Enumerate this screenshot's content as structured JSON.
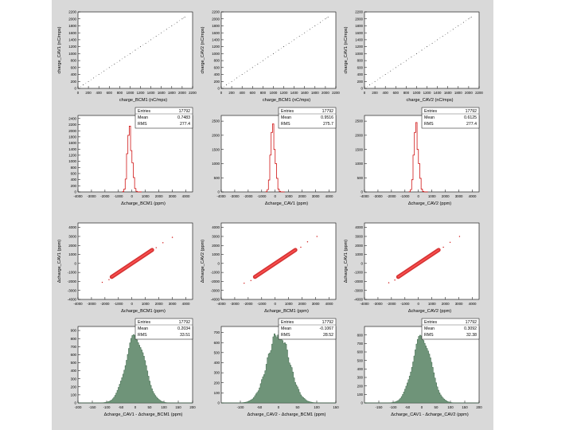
{
  "colors": {
    "background": "#d9d9d9",
    "frame": "#ffffff",
    "hist_fill": "#6f9479",
    "red": "#d01414",
    "ink": "#000000"
  },
  "stat_labels": {
    "entries": "Entries",
    "mean": "Mean",
    "rms": "RMS"
  },
  "chart_data": [
    {
      "type": "scatter",
      "xlabel": "charge_BCM1 (nC/mps)",
      "ylabel": "charge_CAV1 (nC/mps)",
      "xlim": [
        0,
        2200
      ],
      "ylim": [
        0,
        2200
      ],
      "xticks": [
        0,
        200,
        400,
        600,
        800,
        1000,
        1200,
        1400,
        1600,
        1800,
        2000,
        2200
      ],
      "xtick_labels": [
        "0",
        "200",
        "400",
        "600",
        "800",
        "1000",
        "1200",
        "1400",
        "1600",
        "1800",
        "2000",
        "2200"
      ],
      "yticks": [
        0,
        200,
        400,
        600,
        800,
        1000,
        1200,
        1400,
        1600,
        1800,
        2000,
        2200
      ],
      "ytick_labels": [
        "0",
        "200",
        "400",
        "600",
        "800",
        "1000",
        "1200",
        "1400",
        "1600",
        "1800",
        "2000",
        "2200"
      ],
      "series": [
        {
          "name": "correlation",
          "x": [
            0,
            100,
            200,
            300,
            400,
            500,
            600,
            700,
            800,
            900,
            1000,
            1100,
            1200,
            1300,
            1400,
            1500,
            1600,
            1700,
            1800,
            1900,
            2000,
            2050
          ],
          "y": [
            0,
            100,
            200,
            300,
            400,
            500,
            600,
            700,
            800,
            900,
            1000,
            1100,
            1200,
            1300,
            1400,
            1500,
            1600,
            1700,
            1800,
            1900,
            2000,
            2050
          ]
        }
      ]
    },
    {
      "type": "scatter",
      "xlabel": "charge_BCM1 (nC/mps)",
      "ylabel": "charge_CAV2 (nC/mps)",
      "xlim": [
        0,
        2200
      ],
      "ylim": [
        0,
        2200
      ],
      "xticks": [
        0,
        200,
        400,
        600,
        800,
        1000,
        1200,
        1400,
        1600,
        1800,
        2000,
        2200
      ],
      "xtick_labels": [
        "0",
        "200",
        "400",
        "600",
        "800",
        "1000",
        "1200",
        "1400",
        "1600",
        "1800",
        "2000",
        "2200"
      ],
      "yticks": [
        0,
        200,
        400,
        600,
        800,
        1000,
        1200,
        1400,
        1600,
        1800,
        2000,
        2200
      ],
      "ytick_labels": [
        "0",
        "200",
        "400",
        "600",
        "800",
        "1000",
        "1200",
        "1400",
        "1600",
        "1800",
        "2000",
        "2200"
      ],
      "series": [
        {
          "name": "correlation",
          "x": [
            0,
            100,
            200,
            300,
            400,
            500,
            600,
            700,
            800,
            900,
            1000,
            1100,
            1200,
            1300,
            1400,
            1500,
            1600,
            1700,
            1800,
            1900,
            2000,
            2050
          ],
          "y": [
            0,
            100,
            200,
            300,
            400,
            500,
            600,
            700,
            800,
            900,
            1000,
            1100,
            1200,
            1300,
            1400,
            1500,
            1600,
            1700,
            1800,
            1900,
            2000,
            2050
          ]
        }
      ]
    },
    {
      "type": "scatter",
      "xlabel": "charge_CAV2 (nC/mps)",
      "ylabel": "charge_CAV1 (nC/mps)",
      "xlim": [
        0,
        2200
      ],
      "ylim": [
        0,
        2200
      ],
      "xticks": [
        0,
        200,
        400,
        600,
        800,
        1000,
        1200,
        1400,
        1600,
        1800,
        2000,
        2200
      ],
      "xtick_labels": [
        "0",
        "200",
        "400",
        "600",
        "800",
        "1000",
        "1200",
        "1400",
        "1600",
        "1800",
        "2000",
        "2200"
      ],
      "yticks": [
        0,
        200,
        400,
        600,
        800,
        1000,
        1200,
        1400,
        1600,
        1800,
        2000,
        2200
      ],
      "ytick_labels": [
        "0",
        "200",
        "400",
        "600",
        "800",
        "1000",
        "1200",
        "1400",
        "1600",
        "1800",
        "2000",
        "2200"
      ],
      "series": [
        {
          "name": "correlation",
          "x": [
            0,
            100,
            200,
            300,
            400,
            500,
            600,
            700,
            800,
            900,
            1000,
            1100,
            1200,
            1300,
            1400,
            1500,
            1600,
            1700,
            1800,
            1900,
            2000,
            2050
          ],
          "y": [
            0,
            100,
            200,
            300,
            400,
            500,
            600,
            700,
            800,
            900,
            1000,
            1100,
            1200,
            1300,
            1400,
            1500,
            1600,
            1700,
            1800,
            1900,
            2000,
            2050
          ]
        }
      ]
    },
    {
      "type": "histogram",
      "style": "line",
      "xlabel": "Δcharge_BCM1 (ppm)",
      "xlim": [
        -4000,
        4500
      ],
      "ylim": [
        0,
        2500
      ],
      "xticks": [
        -4000,
        -3000,
        -2000,
        -1000,
        0,
        1000,
        2000,
        3000,
        4000
      ],
      "xtick_labels": [
        "-4000",
        "-3000",
        "-2000",
        "-1000",
        "0",
        "1000",
        "2000",
        "3000",
        "4000"
      ],
      "yticks": [
        0,
        200,
        400,
        600,
        800,
        1000,
        1200,
        1400,
        1600,
        1800,
        2000,
        2200,
        2400
      ],
      "ytick_labels": [
        "0",
        "200",
        "400",
        "600",
        "800",
        "1000",
        "1200",
        "1400",
        "1600",
        "1800",
        "2000",
        "2200",
        "2400"
      ],
      "stats": {
        "entries": "17792",
        "mean": "0.7483",
        "rms": "277.4"
      },
      "bins": {
        "start": -700,
        "width": 100,
        "values": [
          8,
          90,
          420,
          1250,
          1850,
          2150,
          1350,
          950,
          470,
          110,
          20,
          4,
          2,
          1
        ]
      }
    },
    {
      "type": "histogram",
      "style": "line",
      "xlabel": "Δcharge_CAV1 (ppm)",
      "xlim": [
        -4000,
        4500
      ],
      "ylim": [
        0,
        2700
      ],
      "xticks": [
        -4000,
        -3000,
        -2000,
        -1000,
        0,
        1000,
        2000,
        3000,
        4000
      ],
      "xtick_labels": [
        "-4000",
        "-3000",
        "-2000",
        "-1000",
        "0",
        "1000",
        "2000",
        "3000",
        "4000"
      ],
      "yticks": [
        0,
        500,
        1000,
        1500,
        2000,
        2500
      ],
      "ytick_labels": [
        "0",
        "500",
        "1000",
        "1500",
        "2000",
        "2500"
      ],
      "stats": {
        "entries": "17792",
        "mean": "0.9516",
        "rms": "275.7"
      },
      "bins": {
        "start": -700,
        "width": 100,
        "values": [
          6,
          80,
          420,
          1300,
          2100,
          2400,
          1500,
          1000,
          480,
          100,
          20,
          4,
          2,
          1
        ]
      }
    },
    {
      "type": "histogram",
      "style": "line",
      "xlabel": "Δcharge_CAV2 (ppm)",
      "xlim": [
        -4000,
        4500
      ],
      "ylim": [
        0,
        2700
      ],
      "xticks": [
        -4000,
        -3000,
        -2000,
        -1000,
        0,
        1000,
        2000,
        3000,
        4000
      ],
      "xtick_labels": [
        "-4000",
        "-3000",
        "-2000",
        "-1000",
        "0",
        "1000",
        "2000",
        "3000",
        "4000"
      ],
      "yticks": [
        0,
        500,
        1000,
        1500,
        2000,
        2500
      ],
      "ytick_labels": [
        "0",
        "500",
        "1000",
        "1500",
        "2000",
        "2500"
      ],
      "stats": {
        "entries": "17792",
        "mean": "0.6125",
        "rms": "277.4"
      },
      "bins": {
        "start": -700,
        "width": 100,
        "values": [
          6,
          80,
          430,
          1300,
          2100,
          2450,
          1500,
          1000,
          480,
          100,
          20,
          4,
          2,
          1
        ]
      }
    },
    {
      "type": "scatter",
      "style": "band",
      "xlabel": "Δcharge_BCM1 (ppm)",
      "ylabel": "Δcharge_CAV1 (ppm)",
      "xlim": [
        -4000,
        4500
      ],
      "ylim": [
        -4000,
        4500
      ],
      "xticks": [
        -4000,
        -3000,
        -2000,
        -1000,
        0,
        1000,
        2000,
        3000,
        4000
      ],
      "xtick_labels": [
        "-4000",
        "-3000",
        "-2000",
        "-1000",
        "0",
        "1000",
        "2000",
        "3000",
        "4000"
      ],
      "yticks": [
        -4000,
        -3000,
        -2000,
        -1000,
        0,
        1000,
        2000,
        3000,
        4000
      ],
      "ytick_labels": [
        "-4000",
        "-3000",
        "-2000",
        "-1000",
        "0",
        "1000",
        "2000",
        "3000",
        "4000"
      ],
      "series": [
        {
          "name": "core",
          "x": [
            -1500,
            1500
          ],
          "y": [
            -1500,
            1500
          ]
        },
        {
          "name": "outliers",
          "x": [
            -2200,
            -1700,
            1800,
            2300,
            3000
          ],
          "y": [
            -2100,
            -1800,
            1750,
            2300,
            2900
          ]
        }
      ]
    },
    {
      "type": "scatter",
      "style": "band",
      "xlabel": "Δcharge_BCM1 (ppm)",
      "ylabel": "Δcharge_CAV2 (ppm)",
      "xlim": [
        -4000,
        4500
      ],
      "ylim": [
        -4000,
        4500
      ],
      "xticks": [
        -4000,
        -3000,
        -2000,
        -1000,
        0,
        1000,
        2000,
        3000,
        4000
      ],
      "xtick_labels": [
        "-4000",
        "-3000",
        "-2000",
        "-1000",
        "0",
        "1000",
        "2000",
        "3000",
        "4000"
      ],
      "yticks": [
        -4000,
        -3000,
        -2000,
        -1000,
        0,
        1000,
        2000,
        3000,
        4000
      ],
      "ytick_labels": [
        "-4000",
        "-3000",
        "-2000",
        "-1000",
        "0",
        "1000",
        "2000",
        "3000",
        "4000"
      ],
      "series": [
        {
          "name": "core",
          "x": [
            -1500,
            1500
          ],
          "y": [
            -1500,
            1500
          ]
        },
        {
          "name": "outliers",
          "x": [
            -2300,
            -1800,
            1900,
            2400,
            3100
          ],
          "y": [
            -2200,
            -1900,
            1800,
            2400,
            3000
          ]
        }
      ]
    },
    {
      "type": "scatter",
      "style": "band",
      "xlabel": "Δcharge_CAV2 (ppm)",
      "ylabel": "Δcharge_CAV1 (ppm)",
      "xlim": [
        -4000,
        4500
      ],
      "ylim": [
        -4000,
        4500
      ],
      "xticks": [
        -4000,
        -3000,
        -2000,
        -1000,
        0,
        1000,
        2000,
        3000,
        4000
      ],
      "xtick_labels": [
        "-4000",
        "-3000",
        "-2000",
        "-1000",
        "0",
        "1000",
        "2000",
        "3000",
        "4000"
      ],
      "yticks": [
        -4000,
        -3000,
        -2000,
        -1000,
        0,
        1000,
        2000,
        3000,
        4000
      ],
      "ytick_labels": [
        "-4000",
        "-3000",
        "-2000",
        "-1000",
        "0",
        "1000",
        "2000",
        "3000",
        "4000"
      ],
      "series": [
        {
          "name": "core",
          "x": [
            -1500,
            1500
          ],
          "y": [
            -1500,
            1500
          ]
        },
        {
          "name": "outliers",
          "x": [
            -2200,
            -1750,
            1850,
            2350,
            3050
          ],
          "y": [
            -2150,
            -1850,
            1800,
            2350,
            3000
          ]
        }
      ]
    },
    {
      "type": "histogram",
      "style": "filled",
      "xlabel": "Δcharge_CAV1 - Δcharge_BCM1 (ppm)",
      "xlim": [
        -200,
        200
      ],
      "ylim": [
        0,
        950
      ],
      "xticks": [
        -200,
        -150,
        -100,
        -50,
        0,
        50,
        100,
        150,
        200
      ],
      "xtick_labels": [
        "-200",
        "-150",
        "-100",
        "-50",
        "0",
        "50",
        "100",
        "150",
        "200"
      ],
      "yticks": [
        0,
        100,
        200,
        300,
        400,
        500,
        600,
        700,
        800,
        900
      ],
      "ytick_labels": [
        "0",
        "100",
        "200",
        "300",
        "400",
        "500",
        "600",
        "700",
        "800",
        "900"
      ],
      "stats": {
        "entries": "17792",
        "mean": "0.2034",
        "rms": "33.51"
      },
      "gauss": {
        "mean": 0.2,
        "sigma": 33.51,
        "peak": 830,
        "bin_width": 4
      }
    },
    {
      "type": "histogram",
      "style": "filled",
      "xlabel": "Δcharge_CAV2 - Δcharge_BCM1 (ppm)",
      "xlim": [
        -150,
        150
      ],
      "ylim": [
        0,
        760
      ],
      "xticks": [
        -100,
        -50,
        0,
        50,
        100,
        150
      ],
      "xtick_labels": [
        "-100",
        "-50",
        "0",
        "50",
        "100",
        "150"
      ],
      "yticks": [
        0,
        100,
        200,
        300,
        400,
        500,
        600,
        700
      ],
      "ytick_labels": [
        "0",
        "100",
        "200",
        "300",
        "400",
        "500",
        "600",
        "700"
      ],
      "stats": {
        "entries": "17792",
        "mean": "-0.1067",
        "rms": "28.52"
      },
      "gauss": {
        "mean": -0.1,
        "sigma": 28.52,
        "peak": 700,
        "bin_width": 3
      }
    },
    {
      "type": "histogram",
      "style": "filled",
      "xlabel": "Δcharge_CAV1 - Δcharge_CAV2 (ppm)",
      "xlim": [
        -200,
        200
      ],
      "ylim": [
        0,
        900
      ],
      "xticks": [
        -150,
        -100,
        -50,
        0,
        50,
        100,
        150,
        200
      ],
      "xtick_labels": [
        "-150",
        "-100",
        "-50",
        "0",
        "50",
        "100",
        "150",
        "200"
      ],
      "yticks": [
        0,
        100,
        200,
        300,
        400,
        500,
        600,
        700,
        800
      ],
      "ytick_labels": [
        "0",
        "100",
        "200",
        "300",
        "400",
        "500",
        "600",
        "700",
        "800"
      ],
      "stats": {
        "entries": "17792",
        "mean": "0.3092",
        "rms": "32.38"
      },
      "gauss": {
        "mean": 0.3,
        "sigma": 32.38,
        "peak": 780,
        "bin_width": 4
      }
    }
  ]
}
